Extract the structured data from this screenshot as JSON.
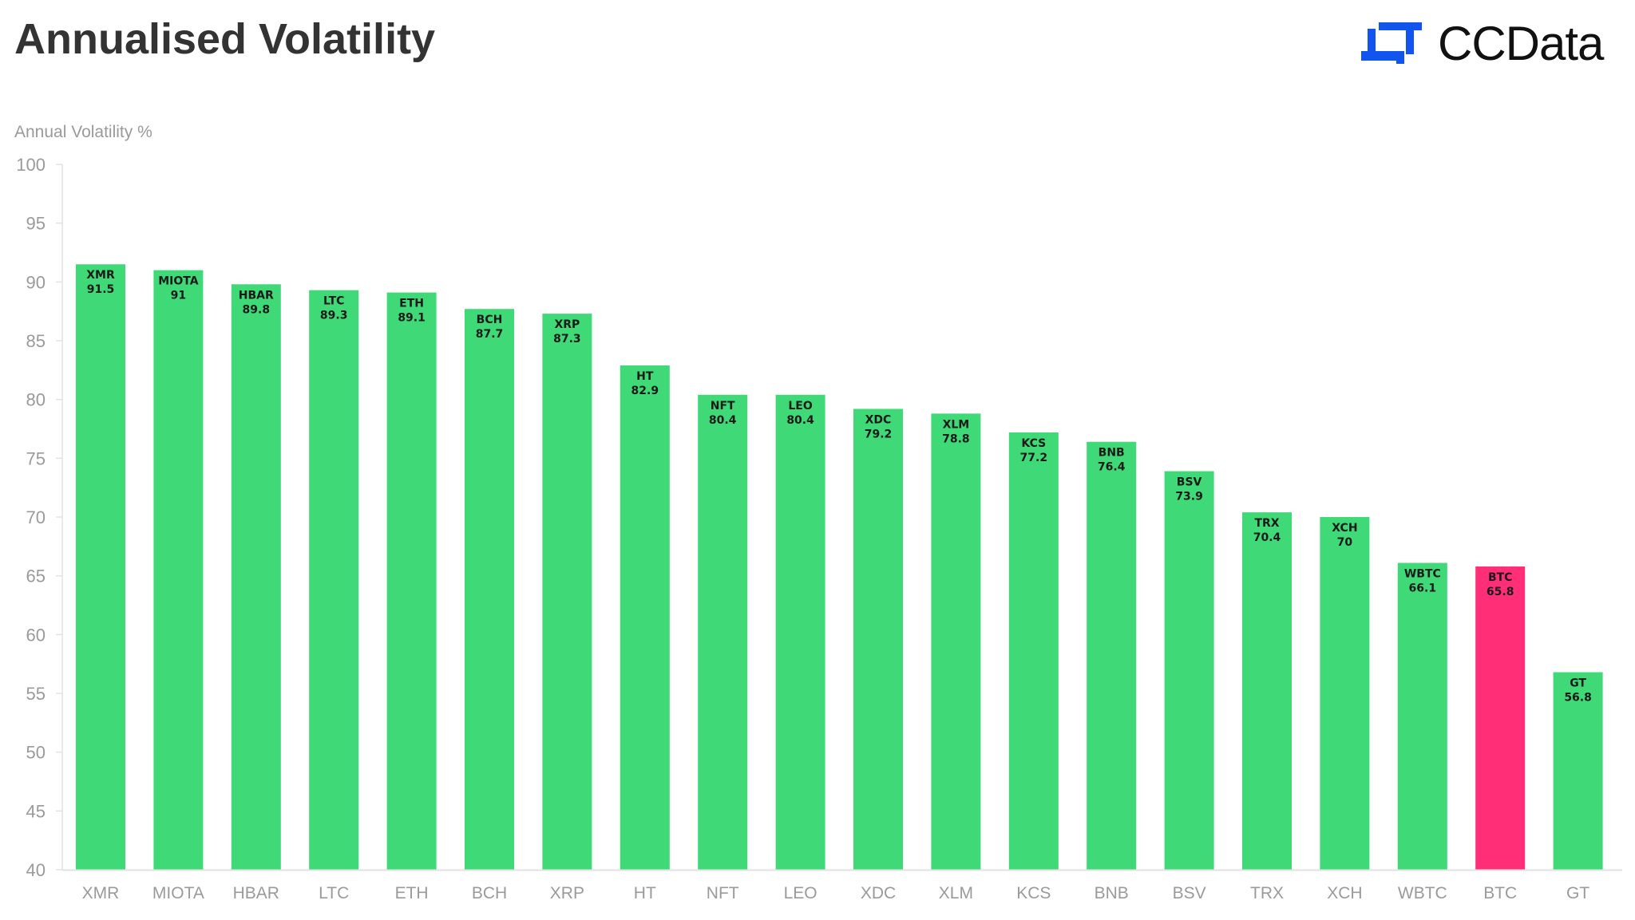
{
  "header": {
    "title": "Annualised Volatility",
    "logo_text": "CCData",
    "logo_icon": "ccdata-logo-icon",
    "logo_color": "#1155ee"
  },
  "colors": {
    "bar_default": "#3fd977",
    "bar_highlight": "#ff2e76",
    "axis": "#e2e2e2",
    "tick_text": "#9a9a9a"
  },
  "chart_data": {
    "type": "bar",
    "title": "Annualised Volatility",
    "xlabel": "",
    "ylabel": "Annual Volatility %",
    "ylim": [
      40,
      100
    ],
    "yticks": [
      40,
      45,
      50,
      55,
      60,
      65,
      70,
      75,
      80,
      85,
      90,
      95,
      100
    ],
    "grid": false,
    "categories": [
      "XMR",
      "MIOTA",
      "HBAR",
      "LTC",
      "ETH",
      "BCH",
      "XRP",
      "HT",
      "NFT",
      "LEO",
      "XDC",
      "XLM",
      "KCS",
      "BNB",
      "BSV",
      "TRX",
      "XCH",
      "WBTC",
      "BTC",
      "GT"
    ],
    "values": [
      91.5,
      91,
      89.8,
      89.3,
      89.1,
      87.7,
      87.3,
      82.9,
      80.4,
      80.4,
      79.2,
      78.8,
      77.2,
      76.4,
      73.9,
      70.4,
      70,
      66.1,
      65.8,
      56.8
    ],
    "value_labels": [
      "91.5",
      "91",
      "89.8",
      "89.3",
      "89.1",
      "87.7",
      "87.3",
      "82.9",
      "80.4",
      "80.4",
      "79.2",
      "78.8",
      "77.2",
      "76.4",
      "73.9",
      "70.4",
      "70",
      "66.1",
      "65.8",
      "56.8"
    ],
    "highlight": "BTC"
  }
}
